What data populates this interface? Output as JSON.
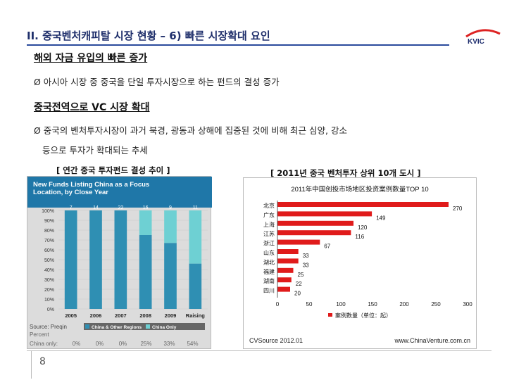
{
  "header": {
    "title": "II. 중국벤처캐피탈 시장 현황 – 6) 빠른 시장확대 요인",
    "logo_text": "KVIC"
  },
  "section1": {
    "heading": "해외 자금 유입의 빠른 증가",
    "bullet": "Ø 아시아 시장 중 중국을 단일 투자시장으로 하는 펀드의 결성 증가"
  },
  "section2": {
    "heading": "중국전역으로 VC 시장 확대",
    "bullet_line1": "Ø 중국의 벤처투자시장이 과거 북경, 광동과 상해에 집중된 것에 비해 최근 심양, 강소",
    "bullet_line2": "등으로 투자가 확대되는 추세"
  },
  "captions": {
    "left": "[ 연간 중국 투자펀드 결성 추이 ]",
    "right": "[ 2011년 중국 벤처투자 상위 10개 도시 ]"
  },
  "footer": {
    "page_number": "8",
    "source_note": "Source: Preqin",
    "percent_label": "Percent",
    "china_only_label": "China only:"
  },
  "chart_data": [
    {
      "type": "bar",
      "stacked": true,
      "title": "New Funds Listing China as a Focus Location, by Close Year",
      "categories": [
        "2005",
        "2006",
        "2007",
        "2008",
        "2009",
        "Raising"
      ],
      "top_labels": [
        "7",
        "14",
        "22",
        "16",
        "9",
        "11"
      ],
      "series": [
        {
          "name": "China & Other Regions",
          "values": [
            100,
            100,
            100,
            75,
            67,
            46
          ],
          "color": "#2f8fb3"
        },
        {
          "name": "China Only",
          "values": [
            0,
            0,
            0,
            25,
            33,
            54
          ],
          "color": "#6ed0d3"
        }
      ],
      "percent_row": [
        "0%",
        "0%",
        "0%",
        "25%",
        "33%",
        "54%"
      ],
      "yticks": [
        "100%",
        "90%",
        "80%",
        "70%",
        "60%",
        "50%",
        "40%",
        "30%",
        "20%",
        "10%",
        "0%"
      ],
      "ylim": [
        0,
        100
      ]
    },
    {
      "type": "bar",
      "orientation": "horizontal",
      "title": "2011年中国创投市场地区投资案例数量TOP 10",
      "categories": [
        "北京",
        "广东",
        "上海",
        "江苏",
        "浙江",
        "山东",
        "湖北",
        "福建",
        "湖南",
        "四川"
      ],
      "values": [
        270,
        149,
        120,
        116,
        67,
        33,
        33,
        25,
        22,
        20
      ],
      "xticks": [
        "0",
        "50",
        "100",
        "150",
        "200",
        "250",
        "300"
      ],
      "xlim": [
        0,
        300
      ],
      "legend": "案例数量（单位：起）",
      "source": "CVSource 2012.01",
      "website": "www.ChinaVenture.com.cn",
      "color": "#e01b1b"
    }
  ]
}
